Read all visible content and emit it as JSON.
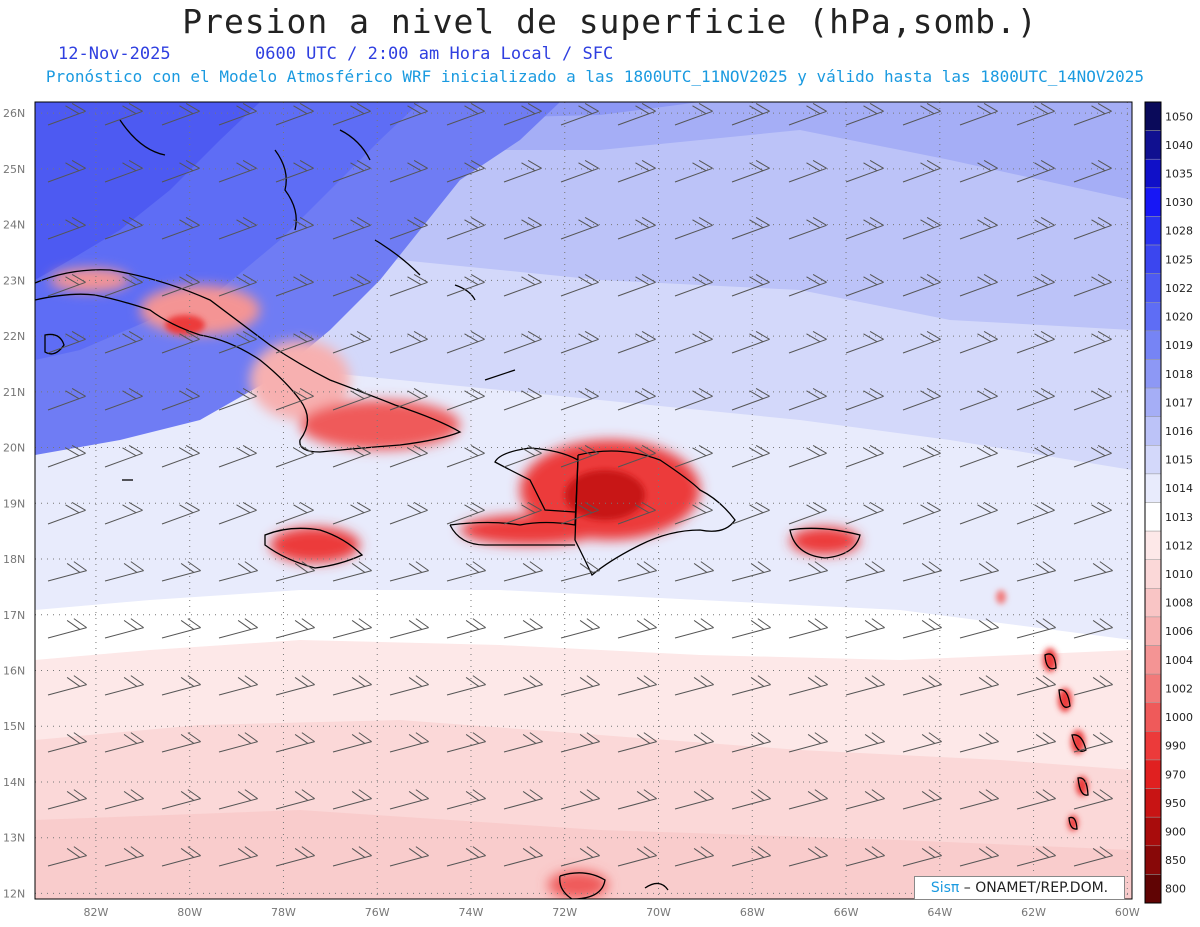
{
  "header": {
    "title": "Presion a nivel de superficie (hPa,somb.)",
    "date": "12-Nov-2025",
    "time": "0600 UTC / 2:00 am Hora Local / SFC",
    "forecast": "Pronóstico con el Modelo Atmosférico WRF inicializado a las 1800UTC_11NOV2025 y válido hasta las  1800UTC_14NOV2025"
  },
  "map": {
    "lat_labels": [
      "26N",
      "25N",
      "24N",
      "23N",
      "22N",
      "21N",
      "20N",
      "19N",
      "18N",
      "17N",
      "16N",
      "15N",
      "14N",
      "13N",
      "12N"
    ],
    "lon_labels": [
      "82W",
      "80W",
      "78W",
      "76W",
      "74W",
      "72W",
      "70W",
      "68W",
      "66W",
      "64W",
      "62W",
      "60W"
    ]
  },
  "colorbar": {
    "levels": [
      "1050",
      "1040",
      "1035",
      "1030",
      "1028",
      "1025",
      "1022",
      "1020",
      "1019",
      "1018",
      "1017",
      "1016",
      "1015",
      "1014",
      "1013",
      "1012",
      "1010",
      "1008",
      "1006",
      "1004",
      "1002",
      "1000",
      "990",
      "970",
      "950",
      "900",
      "850",
      "800"
    ],
    "colors": [
      "#0a0a5a",
      "#101090",
      "#1010c8",
      "#1717f5",
      "#2a33f0",
      "#3b46ef",
      "#4d5af2",
      "#5e6df5",
      "#7684f5",
      "#8d98f5",
      "#a5aef6",
      "#bcc3f8",
      "#d3d8fa",
      "#e8ebfc",
      "#ffffff",
      "#fde8e8",
      "#fbd8d8",
      "#f9c5c5",
      "#f7b0b0",
      "#f49494",
      "#f27a7a",
      "#ef5a5a",
      "#ec3a3a",
      "#e02020",
      "#c81414",
      "#a80c0c",
      "#880808",
      "#600404"
    ]
  },
  "credit": {
    "accent": "Sisπ",
    "text": "ONAMET/REP.DOM."
  }
}
